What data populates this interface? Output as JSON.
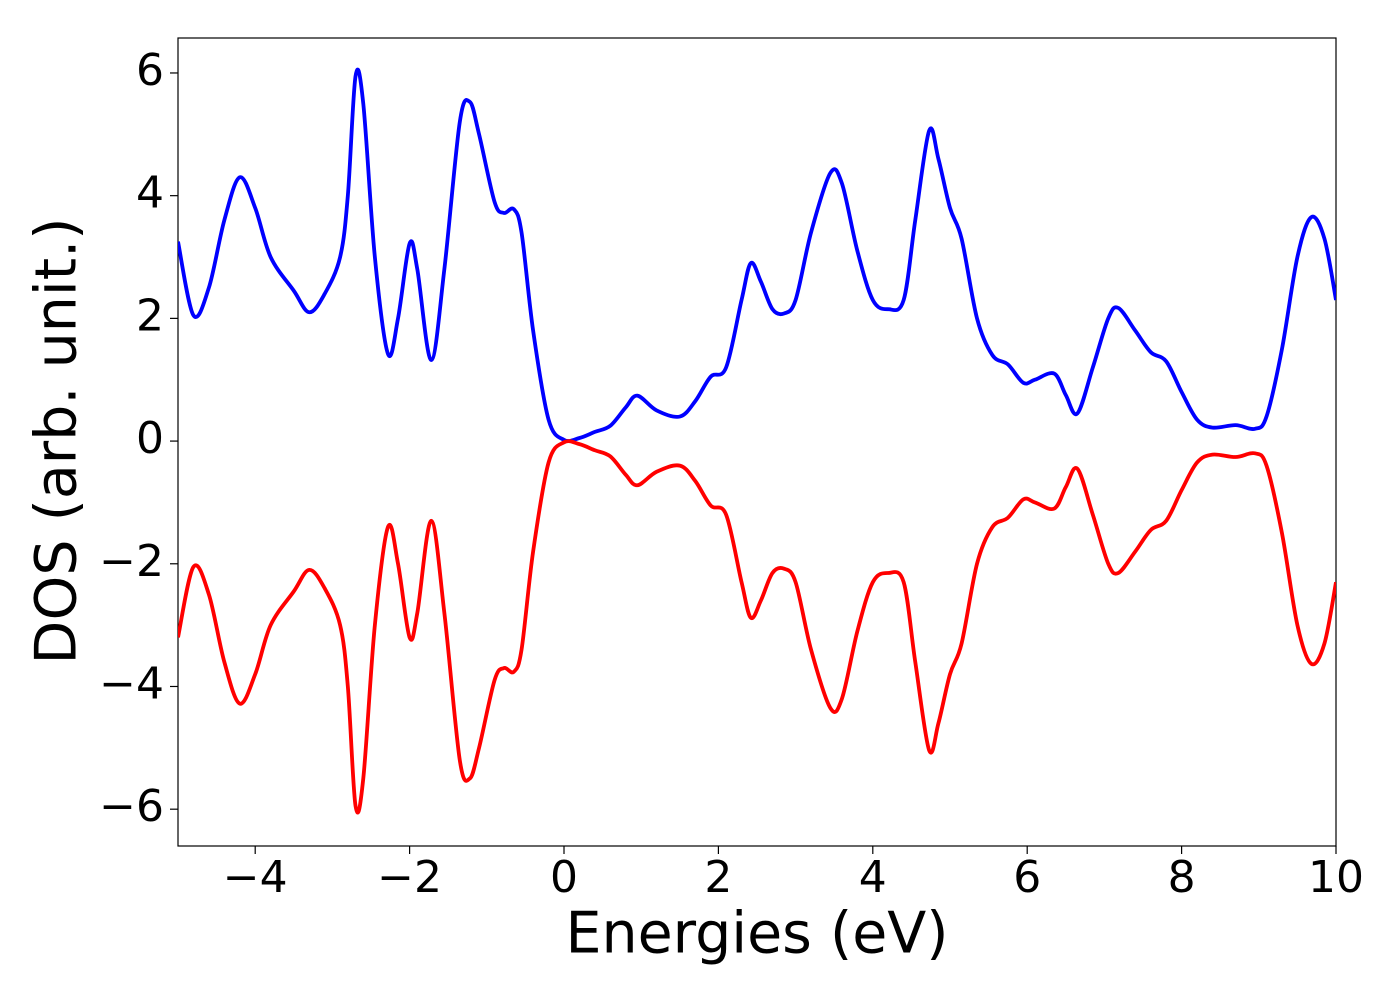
{
  "chart_data": {
    "type": "line",
    "xlabel": "Energies (eV)",
    "ylabel": "DOS (arb. unit.)",
    "x": [
      -5.0,
      -4.8,
      -4.6,
      -4.4,
      -4.2,
      -4.0,
      -3.8,
      -3.5,
      -3.3,
      -3.1,
      -2.9,
      -2.8,
      -2.7,
      -2.6,
      -2.45,
      -2.28,
      -2.15,
      -2.0,
      -1.9,
      -1.72,
      -1.55,
      -1.35,
      -1.22,
      -1.1,
      -0.9,
      -0.78,
      -0.65,
      -0.55,
      -0.4,
      -0.2,
      0.0,
      0.2,
      0.4,
      0.6,
      0.8,
      0.95,
      1.2,
      1.5,
      1.7,
      1.9,
      2.1,
      2.3,
      2.42,
      2.55,
      2.7,
      2.85,
      3.0,
      3.2,
      3.45,
      3.6,
      3.8,
      4.0,
      4.2,
      4.4,
      4.55,
      4.73,
      4.85,
      5.0,
      5.15,
      5.35,
      5.55,
      5.75,
      5.95,
      6.1,
      6.35,
      6.5,
      6.65,
      6.85,
      7.05,
      7.18,
      7.4,
      7.6,
      7.8,
      8.0,
      8.2,
      8.4,
      8.7,
      8.95,
      9.1,
      9.3,
      9.5,
      9.68,
      9.85,
      10.0
    ],
    "series": [
      {
        "color": "#0000ff",
        "values": [
          3.25,
          2.05,
          2.5,
          3.6,
          4.3,
          3.8,
          3.0,
          2.45,
          2.1,
          2.4,
          3.0,
          4.0,
          5.95,
          5.5,
          3.0,
          1.42,
          2.0,
          3.22,
          2.8,
          1.32,
          2.8,
          5.2,
          5.53,
          5.0,
          3.9,
          3.72,
          3.78,
          3.4,
          1.8,
          0.35,
          0.02,
          0.05,
          0.15,
          0.25,
          0.55,
          0.74,
          0.5,
          0.4,
          0.65,
          1.05,
          1.2,
          2.3,
          2.9,
          2.6,
          2.15,
          2.08,
          2.3,
          3.4,
          4.37,
          4.2,
          3.1,
          2.3,
          2.15,
          2.3,
          3.6,
          5.06,
          4.6,
          3.8,
          3.3,
          2.0,
          1.4,
          1.25,
          0.95,
          1.0,
          1.1,
          0.75,
          0.45,
          1.2,
          2.0,
          2.17,
          1.8,
          1.45,
          1.3,
          0.8,
          0.35,
          0.22,
          0.26,
          0.2,
          0.4,
          1.5,
          3.0,
          3.65,
          3.3,
          2.3
        ]
      },
      {
        "color": "#ff0000",
        "values": [
          -3.2,
          -2.05,
          -2.5,
          -3.6,
          -4.28,
          -3.8,
          -3.0,
          -2.45,
          -2.1,
          -2.4,
          -3.0,
          -4.0,
          -5.95,
          -5.5,
          -3.0,
          -1.4,
          -2.0,
          -3.2,
          -2.8,
          -1.3,
          -2.8,
          -5.2,
          -5.5,
          -5.0,
          -3.9,
          -3.7,
          -3.76,
          -3.4,
          -1.8,
          -0.35,
          -0.02,
          -0.05,
          -0.15,
          -0.25,
          -0.55,
          -0.72,
          -0.5,
          -0.4,
          -0.65,
          -1.05,
          -1.2,
          -2.3,
          -2.88,
          -2.6,
          -2.15,
          -2.08,
          -2.3,
          -3.4,
          -4.35,
          -4.2,
          -3.1,
          -2.3,
          -2.15,
          -2.3,
          -3.6,
          -5.04,
          -4.6,
          -3.8,
          -3.3,
          -2.0,
          -1.4,
          -1.25,
          -0.95,
          -1.0,
          -1.1,
          -0.75,
          -0.45,
          -1.2,
          -2.0,
          -2.15,
          -1.8,
          -1.45,
          -1.3,
          -0.8,
          -0.35,
          -0.22,
          -0.26,
          -0.2,
          -0.4,
          -1.5,
          -3.0,
          -3.63,
          -3.3,
          -2.3
        ]
      }
    ],
    "xlim": [
      -5,
      10
    ],
    "ylim": [
      -6.6,
      6.57
    ],
    "xticks": [
      {
        "value": -4,
        "label": "−4"
      },
      {
        "value": -2,
        "label": "−2"
      },
      0,
      2,
      4,
      6,
      8,
      10
    ],
    "yticks": [
      {
        "value": -6,
        "label": "−6"
      },
      {
        "value": -4,
        "label": "−4"
      },
      {
        "value": -2,
        "label": "−2"
      },
      0,
      2,
      4,
      6
    ],
    "grid": false
  }
}
